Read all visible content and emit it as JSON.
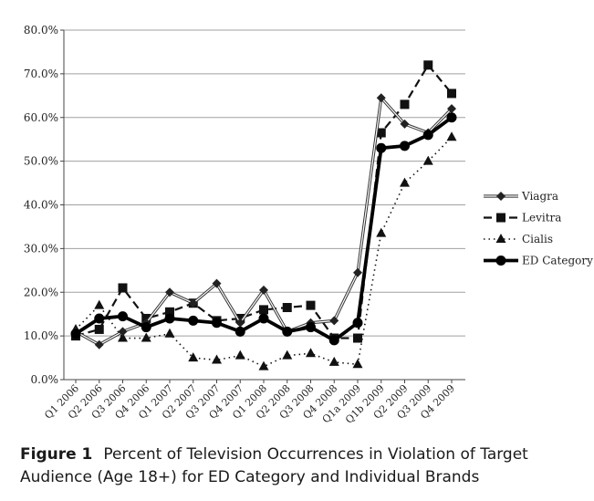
{
  "chart_data": {
    "type": "line",
    "title": "",
    "xlabel": "",
    "ylabel": "",
    "ylim": [
      0,
      80
    ],
    "y_ticks": [
      "0.0%",
      "10.0%",
      "20.0%",
      "30.0%",
      "40.0%",
      "50.0%",
      "60.0%",
      "70.0%",
      "80.0%"
    ],
    "categories": [
      "Q1 2006",
      "Q2 2006",
      "Q3 2006",
      "Q4 2006",
      "Q1 2007",
      "Q2 2007",
      "Q3 2007",
      "Q4 2007",
      "Q1 2008",
      "Q2 2008",
      "Q3 2008",
      "Q4 2008",
      "Q1a 2009",
      "Q1b 2009",
      "Q2 2009",
      "Q3 2009",
      "Q4 2009"
    ],
    "series": [
      {
        "name": "Viagra",
        "values": [
          11.0,
          8.0,
          11.0,
          13.0,
          20.0,
          17.5,
          22.0,
          13.0,
          20.5,
          11.0,
          13.0,
          13.5,
          24.5,
          64.5,
          58.5,
          56.5,
          62.0
        ]
      },
      {
        "name": "Levitra",
        "values": [
          10.0,
          11.5,
          21.0,
          14.0,
          15.5,
          17.5,
          13.5,
          14.0,
          16.0,
          16.5,
          17.0,
          9.5,
          9.5,
          56.5,
          63.0,
          72.0,
          65.5
        ]
      },
      {
        "name": "Cialis",
        "values": [
          11.5,
          17.0,
          9.5,
          9.5,
          10.5,
          5.0,
          4.5,
          5.5,
          3.0,
          5.5,
          6.0,
          4.0,
          3.5,
          33.5,
          45.0,
          50.0,
          55.5
        ]
      },
      {
        "name": "ED Category",
        "values": [
          10.5,
          14.0,
          14.5,
          12.0,
          14.0,
          13.5,
          13.0,
          11.0,
          14.0,
          11.0,
          12.0,
          9.0,
          13.0,
          53.0,
          53.5,
          56.0,
          60.0
        ]
      }
    ],
    "legend_position": "right"
  },
  "caption": {
    "label": "Figure 1",
    "text": "Percent of Television Occurrences in Violation of Target Audience (Age 18+) for ED Category and Individual Brands"
  }
}
